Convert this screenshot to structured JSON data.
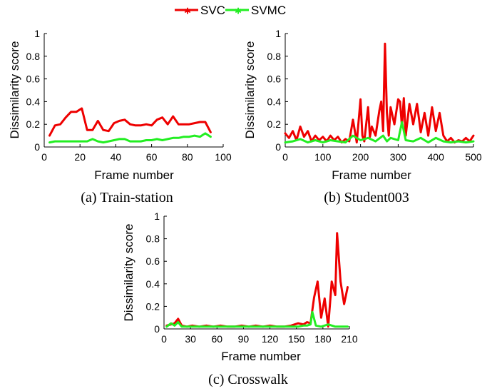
{
  "legend": {
    "entries": [
      {
        "label": "SVC",
        "color": "#ee0000",
        "marker": "star"
      },
      {
        "label": "SVMC",
        "color": "#22ee22",
        "marker": "star"
      }
    ]
  },
  "chart_data": [
    {
      "type": "line",
      "caption": "(a) Train-station",
      "xlabel": "Frame number",
      "ylabel": "Dissimilarity score",
      "xlim": [
        0,
        100
      ],
      "ylim": [
        0,
        1
      ],
      "xticks": [
        0,
        20,
        40,
        60,
        80,
        100
      ],
      "yticks": [
        0,
        0.2,
        0.4,
        0.6,
        0.8,
        1
      ],
      "xtick_labels": [
        "0",
        "20",
        "40",
        "60",
        "80",
        "100"
      ],
      "ytick_labels": [
        "0",
        "0.2",
        "0.4",
        "0.6",
        "0.8",
        "1"
      ],
      "series": [
        {
          "name": "SVC",
          "color": "#ee0000",
          "x": [
            3,
            6,
            9,
            12,
            15,
            18,
            21,
            24,
            27,
            30,
            33,
            36,
            39,
            42,
            45,
            48,
            51,
            54,
            57,
            60,
            63,
            66,
            69,
            72,
            75,
            78,
            81,
            84,
            87,
            90,
            93
          ],
          "y": [
            0.1,
            0.19,
            0.2,
            0.26,
            0.31,
            0.31,
            0.34,
            0.15,
            0.15,
            0.23,
            0.15,
            0.14,
            0.21,
            0.23,
            0.24,
            0.2,
            0.19,
            0.19,
            0.2,
            0.19,
            0.24,
            0.26,
            0.2,
            0.27,
            0.2,
            0.2,
            0.2,
            0.21,
            0.22,
            0.22,
            0.13
          ]
        },
        {
          "name": "SVMC",
          "color": "#22ee22",
          "x": [
            3,
            6,
            9,
            12,
            15,
            18,
            21,
            24,
            27,
            30,
            33,
            36,
            39,
            42,
            45,
            48,
            51,
            54,
            57,
            60,
            63,
            66,
            69,
            72,
            75,
            78,
            81,
            84,
            87,
            90,
            93
          ],
          "y": [
            0.04,
            0.05,
            0.05,
            0.05,
            0.05,
            0.05,
            0.05,
            0.05,
            0.07,
            0.05,
            0.04,
            0.05,
            0.06,
            0.07,
            0.07,
            0.05,
            0.05,
            0.05,
            0.06,
            0.06,
            0.07,
            0.06,
            0.07,
            0.08,
            0.08,
            0.09,
            0.09,
            0.1,
            0.09,
            0.12,
            0.09
          ]
        }
      ]
    },
    {
      "type": "line",
      "caption": "(b) Student003",
      "xlabel": "Frame number",
      "ylabel": "Dissimilarity score",
      "xlim": [
        0,
        500
      ],
      "ylim": [
        0,
        1
      ],
      "xticks": [
        0,
        100,
        200,
        300,
        400,
        500
      ],
      "yticks": [
        0,
        0.2,
        0.4,
        0.6,
        0.8,
        1
      ],
      "xtick_labels": [
        "0",
        "100",
        "200",
        "300",
        "400",
        "500"
      ],
      "ytick_labels": [
        "0",
        "0.2",
        "0.4",
        "0.6",
        "0.8",
        "1"
      ],
      "series": [
        {
          "name": "SVC",
          "color": "#ee0000",
          "x": [
            0,
            10,
            20,
            30,
            40,
            50,
            60,
            70,
            80,
            90,
            100,
            110,
            120,
            130,
            140,
            150,
            160,
            170,
            180,
            190,
            200,
            205,
            210,
            220,
            225,
            230,
            240,
            250,
            255,
            260,
            265,
            270,
            275,
            280,
            290,
            300,
            305,
            310,
            315,
            320,
            330,
            340,
            350,
            360,
            370,
            380,
            390,
            400,
            410,
            420,
            430,
            440,
            450,
            460,
            470,
            480,
            490,
            500
          ],
          "y": [
            0.12,
            0.08,
            0.14,
            0.06,
            0.18,
            0.09,
            0.14,
            0.05,
            0.1,
            0.06,
            0.09,
            0.05,
            0.1,
            0.06,
            0.09,
            0.04,
            0.07,
            0.05,
            0.24,
            0.04,
            0.42,
            0.1,
            0.05,
            0.35,
            0.09,
            0.18,
            0.1,
            0.32,
            0.4,
            0.14,
            0.91,
            0.3,
            0.1,
            0.35,
            0.2,
            0.42,
            0.4,
            0.18,
            0.43,
            0.1,
            0.38,
            0.2,
            0.38,
            0.13,
            0.3,
            0.1,
            0.35,
            0.14,
            0.3,
            0.1,
            0.05,
            0.08,
            0.04,
            0.06,
            0.05,
            0.08,
            0.05,
            0.1
          ]
        },
        {
          "name": "SVMC",
          "color": "#22ee22",
          "x": [
            0,
            20,
            40,
            60,
            80,
            100,
            120,
            140,
            160,
            180,
            200,
            220,
            240,
            260,
            270,
            280,
            300,
            310,
            320,
            340,
            360,
            380,
            400,
            420,
            440,
            460,
            480,
            500
          ],
          "y": [
            0.04,
            0.05,
            0.07,
            0.04,
            0.06,
            0.04,
            0.06,
            0.05,
            0.04,
            0.1,
            0.06,
            0.08,
            0.05,
            0.1,
            0.05,
            0.08,
            0.06,
            0.22,
            0.06,
            0.05,
            0.08,
            0.04,
            0.08,
            0.05,
            0.04,
            0.05,
            0.04,
            0.05
          ]
        }
      ]
    },
    {
      "type": "line",
      "caption": "(c) Crosswalk",
      "xlabel": "Frame number",
      "ylabel": "Dissimilarity score",
      "xlim": [
        0,
        210
      ],
      "ylim": [
        0,
        1
      ],
      "xticks": [
        0,
        30,
        60,
        90,
        120,
        150,
        180,
        210
      ],
      "yticks": [
        0,
        0.2,
        0.4,
        0.6,
        0.8,
        1
      ],
      "xtick_labels": [
        "0",
        "30",
        "60",
        "90",
        "120",
        "150",
        "180",
        "210"
      ],
      "ytick_labels": [
        "0",
        "0.2",
        "0.4",
        "0.6",
        "0.8",
        "1"
      ],
      "series": [
        {
          "name": "SVC",
          "color": "#ee0000",
          "x": [
            3,
            8,
            12,
            16,
            20,
            26,
            32,
            40,
            48,
            56,
            64,
            72,
            80,
            88,
            96,
            104,
            112,
            120,
            128,
            136,
            144,
            152,
            158,
            162,
            166,
            170,
            174,
            178,
            182,
            186,
            190,
            194,
            196,
            200,
            204,
            208
          ],
          "y": [
            0.03,
            0.04,
            0.05,
            0.09,
            0.03,
            0.02,
            0.03,
            0.02,
            0.03,
            0.02,
            0.03,
            0.02,
            0.02,
            0.03,
            0.02,
            0.03,
            0.02,
            0.03,
            0.02,
            0.02,
            0.03,
            0.05,
            0.04,
            0.06,
            0.05,
            0.28,
            0.42,
            0.1,
            0.27,
            0.02,
            0.42,
            0.3,
            0.85,
            0.42,
            0.22,
            0.37
          ]
        },
        {
          "name": "SVMC",
          "color": "#22ee22",
          "x": [
            3,
            8,
            12,
            16,
            20,
            26,
            32,
            40,
            48,
            56,
            64,
            72,
            80,
            88,
            96,
            104,
            112,
            120,
            128,
            136,
            144,
            152,
            158,
            162,
            166,
            168,
            172,
            178,
            186,
            194,
            202,
            208
          ],
          "y": [
            0.02,
            0.05,
            0.03,
            0.06,
            0.02,
            0.02,
            0.02,
            0.02,
            0.02,
            0.02,
            0.02,
            0.02,
            0.02,
            0.02,
            0.02,
            0.02,
            0.02,
            0.02,
            0.02,
            0.02,
            0.02,
            0.02,
            0.03,
            0.03,
            0.04,
            0.15,
            0.03,
            0.02,
            0.04,
            0.02,
            0.02,
            0.02
          ]
        }
      ]
    }
  ]
}
